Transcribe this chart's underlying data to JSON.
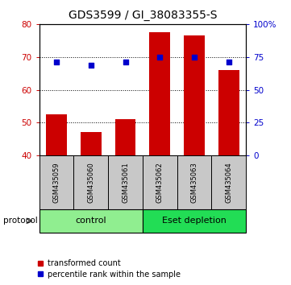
{
  "title": "GDS3599 / GI_38083355-S",
  "samples": [
    "GSM435059",
    "GSM435060",
    "GSM435061",
    "GSM435062",
    "GSM435063",
    "GSM435064"
  ],
  "red_values": [
    52.5,
    47.0,
    51.0,
    77.5,
    76.5,
    66.0
  ],
  "blue_values": [
    68.5,
    67.5,
    68.5,
    70.0,
    70.0,
    68.5
  ],
  "ylim_left": [
    40,
    80
  ],
  "ylim_right": [
    0,
    100
  ],
  "yticks_left": [
    40,
    50,
    60,
    70,
    80
  ],
  "yticks_right": [
    0,
    25,
    50,
    75,
    100
  ],
  "groups": [
    {
      "label": "control",
      "indices": [
        0,
        1,
        2
      ],
      "color": "#90EE90"
    },
    {
      "label": "Eset depletion",
      "indices": [
        3,
        4,
        5
      ],
      "color": "#22DD55"
    }
  ],
  "group_bg_color": "#C8C8C8",
  "bar_color": "#CC0000",
  "dot_color": "#0000CC",
  "title_fontsize": 10,
  "tick_fontsize": 7.5,
  "label_color_left": "#CC0000",
  "label_color_right": "#0000CC",
  "legend_red_label": "transformed count",
  "legend_blue_label": "percentile rank within the sample",
  "protocol_label": "protocol",
  "bar_width": 0.6,
  "hline_vals": [
    50,
    60,
    70
  ],
  "sample_label_fontsize": 6,
  "group_label_fontsize": 8
}
